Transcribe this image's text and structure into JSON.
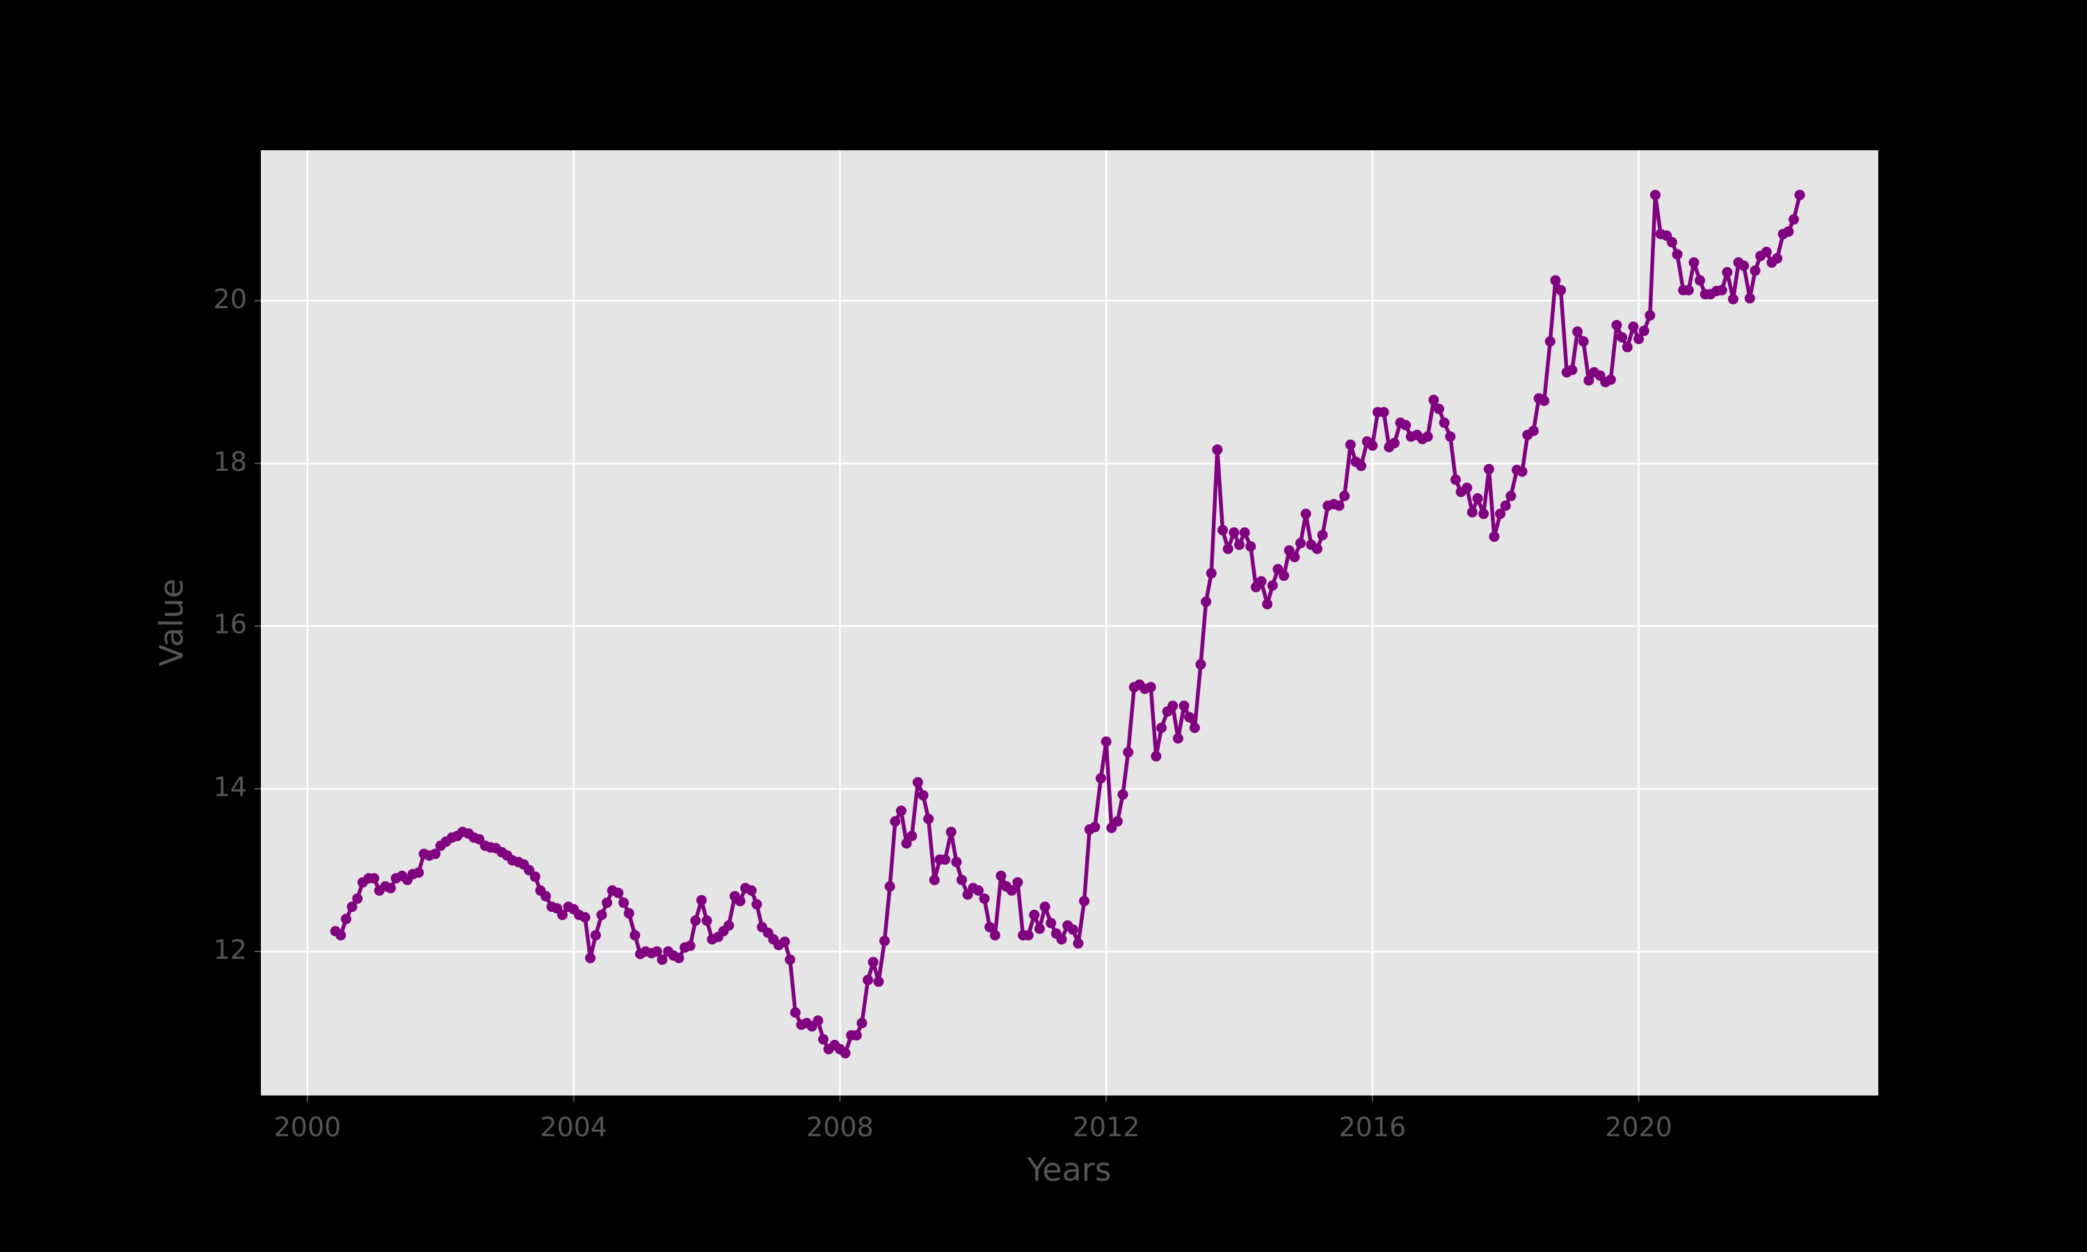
{
  "chart_data": {
    "type": "line",
    "x_label": "Years",
    "y_label": "Value",
    "color": "#800080",
    "grid": true,
    "marker": true,
    "xlim": [
      1999.3,
      2023.6
    ],
    "xticks": [
      2000,
      2004,
      2008,
      2012,
      2016,
      2020
    ],
    "ylim": [
      10.23,
      21.85
    ],
    "yticks": [
      12,
      14,
      16,
      18,
      20
    ],
    "x": [
      2000.42,
      2000.5,
      2000.58,
      2000.67,
      2000.75,
      2000.83,
      2000.92,
      2001.0,
      2001.08,
      2001.17,
      2001.25,
      2001.33,
      2001.42,
      2001.5,
      2001.58,
      2001.67,
      2001.75,
      2001.83,
      2001.92,
      2002.0,
      2002.08,
      2002.17,
      2002.25,
      2002.33,
      2002.42,
      2002.5,
      2002.58,
      2002.67,
      2002.75,
      2002.83,
      2002.92,
      2003.0,
      2003.08,
      2003.17,
      2003.25,
      2003.33,
      2003.42,
      2003.5,
      2003.58,
      2003.67,
      2003.75,
      2003.83,
      2003.92,
      2004.0,
      2004.08,
      2004.17,
      2004.25,
      2004.33,
      2004.42,
      2004.5,
      2004.58,
      2004.67,
      2004.75,
      2004.83,
      2004.92,
      2005.0,
      2005.08,
      2005.17,
      2005.25,
      2005.33,
      2005.42,
      2005.5,
      2005.58,
      2005.67,
      2005.75,
      2005.83,
      2005.92,
      2006.0,
      2006.08,
      2006.17,
      2006.25,
      2006.33,
      2006.42,
      2006.5,
      2006.58,
      2006.67,
      2006.75,
      2006.83,
      2006.92,
      2007.0,
      2007.08,
      2007.17,
      2007.25,
      2007.33,
      2007.42,
      2007.5,
      2007.58,
      2007.67,
      2007.75,
      2007.83,
      2007.92,
      2008.0,
      2008.08,
      2008.17,
      2008.25,
      2008.33,
      2008.42,
      2008.5,
      2008.58,
      2008.67,
      2008.75,
      2008.83,
      2008.92,
      2009.0,
      2009.08,
      2009.17,
      2009.25,
      2009.33,
      2009.42,
      2009.5,
      2009.58,
      2009.67,
      2009.75,
      2009.83,
      2009.92,
      2010.0,
      2010.08,
      2010.17,
      2010.25,
      2010.33,
      2010.42,
      2010.5,
      2010.58,
      2010.67,
      2010.75,
      2010.83,
      2010.92,
      2011.0,
      2011.08,
      2011.17,
      2011.25,
      2011.33,
      2011.42,
      2011.5,
      2011.58,
      2011.67,
      2011.75,
      2011.83,
      2011.92,
      2012.0,
      2012.08,
      2012.17,
      2012.25,
      2012.33,
      2012.42,
      2012.5,
      2012.58,
      2012.67,
      2012.75,
      2012.83,
      2012.92,
      2013.0,
      2013.08,
      2013.17,
      2013.25,
      2013.33,
      2013.42,
      2013.5,
      2013.58,
      2013.67,
      2013.75,
      2013.83,
      2013.92,
      2014.0,
      2014.08,
      2014.17,
      2014.25,
      2014.33,
      2014.42,
      2014.5,
      2014.58,
      2014.67,
      2014.75,
      2014.83,
      2014.92,
      2015.0,
      2015.08,
      2015.17,
      2015.25,
      2015.33,
      2015.42,
      2015.5,
      2015.58,
      2015.67,
      2015.75,
      2015.83,
      2015.92,
      2016.0,
      2016.08,
      2016.17,
      2016.25,
      2016.33,
      2016.42,
      2016.5,
      2016.58,
      2016.67,
      2016.75,
      2016.83,
      2016.92,
      2017.0,
      2017.08,
      2017.17,
      2017.25,
      2017.33,
      2017.42,
      2017.5,
      2017.58,
      2017.67,
      2017.75,
      2017.83,
      2017.92,
      2018.0,
      2018.08,
      2018.17,
      2018.25,
      2018.33,
      2018.42,
      2018.5,
      2018.58,
      2018.67,
      2018.75,
      2018.83,
      2018.92,
      2019.0,
      2019.08,
      2019.17,
      2019.25,
      2019.33,
      2019.42,
      2019.5,
      2019.58,
      2019.67,
      2019.75,
      2019.83,
      2019.92,
      2020.0,
      2020.08,
      2020.17,
      2020.25,
      2020.33,
      2020.42,
      2020.5,
      2020.58,
      2020.67,
      2020.75,
      2020.83,
      2020.92,
      2021.0,
      2021.08,
      2021.17,
      2021.25,
      2021.33,
      2021.42,
      2021.5,
      2021.58,
      2021.67,
      2021.75,
      2021.83,
      2021.92,
      2022.0,
      2022.08,
      2022.17,
      2022.25,
      2022.33,
      2022.42
    ],
    "values": [
      12.25,
      12.2,
      12.4,
      12.55,
      12.65,
      12.85,
      12.9,
      12.9,
      12.75,
      12.8,
      12.78,
      12.9,
      12.93,
      12.88,
      12.95,
      12.97,
      13.2,
      13.18,
      13.2,
      13.3,
      13.35,
      13.4,
      13.42,
      13.47,
      13.45,
      13.4,
      13.38,
      13.3,
      13.28,
      13.27,
      13.22,
      13.18,
      13.12,
      13.1,
      13.07,
      13.0,
      12.92,
      12.75,
      12.68,
      12.55,
      12.53,
      12.45,
      12.55,
      12.52,
      12.45,
      12.42,
      11.92,
      12.2,
      12.45,
      12.6,
      12.75,
      12.72,
      12.6,
      12.47,
      12.2,
      11.97,
      12.0,
      11.98,
      12.0,
      11.9,
      12.0,
      11.95,
      11.92,
      12.05,
      12.07,
      12.38,
      12.63,
      12.38,
      12.15,
      12.18,
      12.25,
      12.32,
      12.68,
      12.62,
      12.78,
      12.75,
      12.58,
      12.3,
      12.23,
      12.15,
      12.08,
      12.12,
      11.9,
      11.25,
      11.1,
      11.12,
      11.08,
      11.15,
      10.92,
      10.8,
      10.85,
      10.8,
      10.75,
      10.97,
      10.97,
      11.12,
      11.65,
      11.87,
      11.63,
      12.13,
      12.8,
      13.6,
      13.73,
      13.33,
      13.42,
      14.08,
      13.92,
      13.63,
      12.88,
      13.13,
      13.13,
      13.47,
      13.1,
      12.88,
      12.7,
      12.78,
      12.75,
      12.65,
      12.3,
      12.2,
      12.93,
      12.8,
      12.75,
      12.85,
      12.2,
      12.2,
      12.45,
      12.28,
      12.55,
      12.35,
      12.22,
      12.15,
      12.32,
      12.27,
      12.1,
      12.62,
      13.5,
      13.53,
      14.13,
      14.58,
      13.52,
      13.6,
      13.93,
      14.45,
      15.25,
      15.28,
      15.23,
      15.25,
      14.4,
      14.75,
      14.95,
      15.02,
      14.62,
      15.02,
      14.88,
      14.75,
      15.53,
      16.3,
      16.65,
      18.17,
      17.18,
      16.95,
      17.15,
      17.0,
      17.15,
      16.98,
      16.48,
      16.55,
      16.27,
      16.5,
      16.7,
      16.62,
      16.93,
      16.85,
      17.02,
      17.38,
      17.0,
      16.95,
      17.12,
      17.48,
      17.5,
      17.48,
      17.6,
      18.23,
      18.02,
      17.97,
      18.27,
      18.22,
      18.63,
      18.63,
      18.2,
      18.25,
      18.5,
      18.47,
      18.33,
      18.35,
      18.3,
      18.33,
      18.78,
      18.67,
      18.5,
      18.33,
      17.8,
      17.65,
      17.7,
      17.4,
      17.57,
      17.38,
      17.93,
      17.1,
      17.38,
      17.48,
      17.6,
      17.92,
      17.9,
      18.35,
      18.4,
      18.8,
      18.77,
      19.5,
      20.25,
      20.13,
      19.12,
      19.15,
      19.62,
      19.5,
      19.02,
      19.12,
      19.08,
      19.0,
      19.03,
      19.7,
      19.55,
      19.43,
      19.68,
      19.53,
      19.63,
      19.82,
      21.3,
      20.82,
      20.8,
      20.72,
      20.57,
      20.13,
      20.13,
      20.47,
      20.25,
      20.08,
      20.08,
      20.12,
      20.13,
      20.35,
      20.02,
      20.47,
      20.43,
      20.03,
      20.37,
      20.55,
      20.6,
      20.47,
      20.52,
      20.82,
      20.85,
      21.0,
      21.3
    ]
  }
}
